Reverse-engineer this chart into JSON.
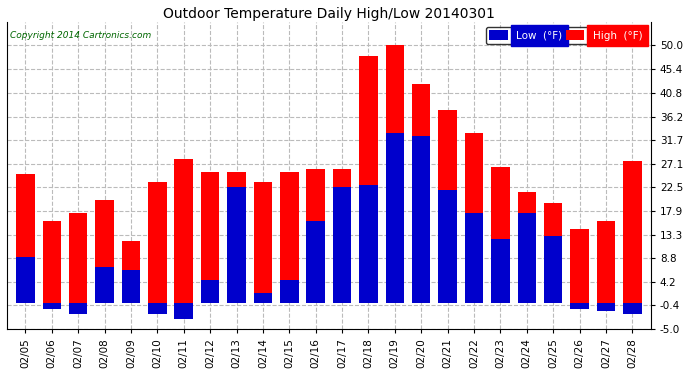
{
  "title": "Outdoor Temperature Daily High/Low 20140301",
  "copyright": "Copyright 2014 Cartronics.com",
  "dates": [
    "02/05",
    "02/06",
    "02/07",
    "02/08",
    "02/09",
    "02/10",
    "02/11",
    "02/12",
    "02/13",
    "02/14",
    "02/15",
    "02/16",
    "02/17",
    "02/18",
    "02/19",
    "02/20",
    "02/21",
    "02/22",
    "02/23",
    "02/24",
    "02/25",
    "02/26",
    "02/27",
    "02/28"
  ],
  "high": [
    25.0,
    16.0,
    17.5,
    20.0,
    12.0,
    23.5,
    28.0,
    25.5,
    25.5,
    23.5,
    25.5,
    26.0,
    26.0,
    48.0,
    50.0,
    42.5,
    37.5,
    33.0,
    26.5,
    21.5,
    19.5,
    14.5,
    16.0,
    27.5
  ],
  "low": [
    9.0,
    -1.0,
    -2.0,
    7.0,
    6.5,
    -2.0,
    -3.0,
    4.5,
    22.5,
    2.0,
    4.5,
    16.0,
    22.5,
    23.0,
    33.0,
    32.5,
    22.0,
    17.5,
    12.5,
    17.5,
    13.0,
    -1.0,
    -1.5,
    -2.0
  ],
  "high_color": "#ff0000",
  "low_color": "#0000cc",
  "bg_color": "#ffffff",
  "grid_color": "#bbbbbb",
  "ylim": [
    -5.0,
    54.5
  ],
  "yticks": [
    -5.0,
    -0.4,
    4.2,
    8.8,
    13.3,
    17.9,
    22.5,
    27.1,
    31.7,
    36.2,
    40.8,
    45.4,
    50.0
  ],
  "bar_width": 0.7,
  "legend_low_label": "Low  (°F)",
  "legend_high_label": "High  (°F)"
}
